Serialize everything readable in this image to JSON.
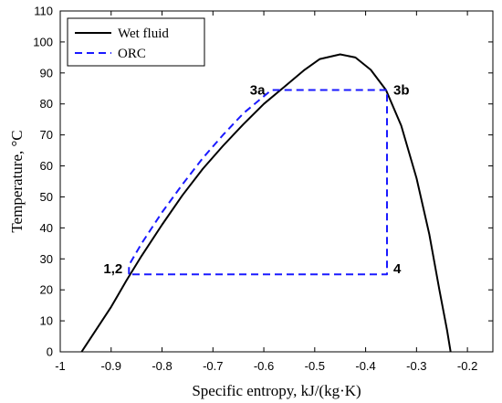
{
  "chart_data": {
    "type": "line",
    "xlabel": "Specific entropy, kJ/(kg·K)",
    "ylabel": "Temperature, °C",
    "xlim": [
      -1,
      -0.15
    ],
    "ylim": [
      0,
      110
    ],
    "xticks": [
      -1,
      -0.9,
      -0.8,
      -0.7,
      -0.6,
      -0.5,
      -0.4,
      -0.3,
      -0.2
    ],
    "xtick_labels": [
      "-1",
      "-0.9",
      "-0.8",
      "-0.7",
      "-0.6",
      "-0.5",
      "-0.4",
      "-0.3",
      "-0.2"
    ],
    "yticks": [
      0,
      10,
      20,
      30,
      40,
      50,
      60,
      70,
      80,
      90,
      100,
      110
    ],
    "ytick_labels": [
      "0",
      "10",
      "20",
      "30",
      "40",
      "50",
      "60",
      "70",
      "80",
      "90",
      "100",
      "110"
    ],
    "grid": false,
    "legend_position": "top-left",
    "series": [
      {
        "name": "Wet fluid",
        "color": "#000000",
        "style": "solid",
        "points": [
          [
            -0.958,
            0
          ],
          [
            -0.93,
            7
          ],
          [
            -0.9,
            14.5
          ],
          [
            -0.87,
            23
          ],
          [
            -0.84,
            31
          ],
          [
            -0.8,
            41
          ],
          [
            -0.76,
            50.5
          ],
          [
            -0.72,
            59
          ],
          [
            -0.68,
            66.5
          ],
          [
            -0.64,
            73.5
          ],
          [
            -0.6,
            80
          ],
          [
            -0.56,
            85.5
          ],
          [
            -0.52,
            91
          ],
          [
            -0.49,
            94.5
          ],
          [
            -0.45,
            96
          ],
          [
            -0.42,
            95
          ],
          [
            -0.39,
            91
          ],
          [
            -0.36,
            84.5
          ],
          [
            -0.33,
            73
          ],
          [
            -0.3,
            56
          ],
          [
            -0.275,
            38
          ],
          [
            -0.255,
            20
          ],
          [
            -0.24,
            7
          ],
          [
            -0.233,
            0
          ]
        ]
      },
      {
        "name": "ORC",
        "color": "#1a1aff",
        "style": "dashed",
        "points": [
          [
            -0.865,
            25
          ],
          [
            -0.865,
            28
          ],
          [
            -0.84,
            35
          ],
          [
            -0.8,
            45
          ],
          [
            -0.76,
            54
          ],
          [
            -0.72,
            62.5
          ],
          [
            -0.68,
            70
          ],
          [
            -0.64,
            77
          ],
          [
            -0.6,
            82.5
          ],
          [
            -0.585,
            84.5
          ],
          [
            -0.358,
            84.5
          ],
          [
            -0.358,
            25
          ],
          [
            -0.865,
            25
          ]
        ]
      }
    ],
    "annotations": [
      {
        "text": "1,2",
        "x": -0.865,
        "y": 25,
        "anchor": "end"
      },
      {
        "text": "3a",
        "x": -0.585,
        "y": 84.5,
        "anchor": "end"
      },
      {
        "text": "3b",
        "x": -0.358,
        "y": 84.5,
        "anchor": "start"
      },
      {
        "text": "4",
        "x": -0.358,
        "y": 25,
        "anchor": "start"
      }
    ]
  }
}
